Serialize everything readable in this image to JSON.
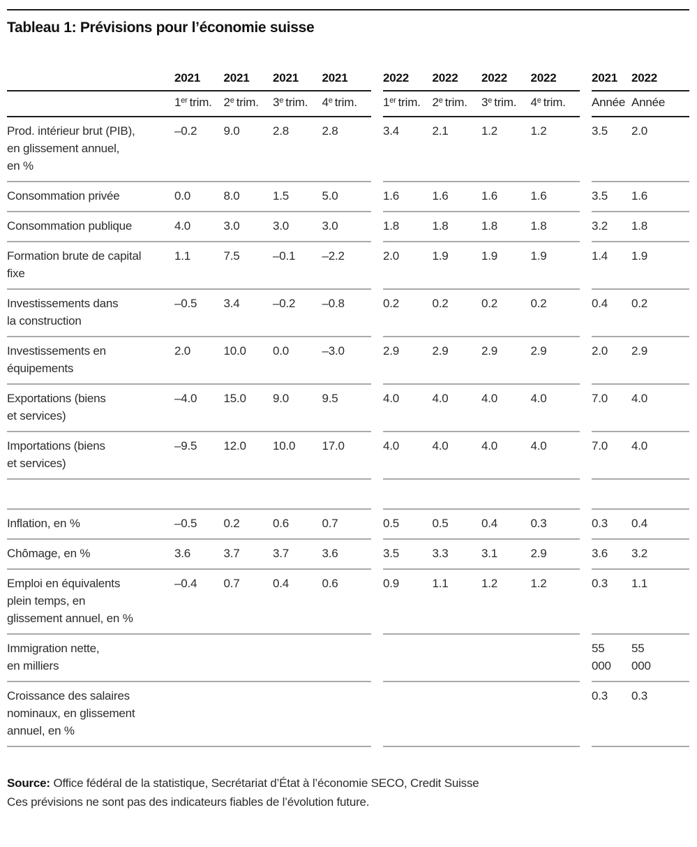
{
  "title": "Tableau 1: Prévisions pour l’économie suisse",
  "table": {
    "year_headers": {
      "g1": [
        "2021",
        "2021",
        "2021",
        "2021"
      ],
      "g2": [
        "2022",
        "2022",
        "2022",
        "2022"
      ],
      "g3": [
        "2021",
        "2022"
      ]
    },
    "quarter_headers": [
      {
        "n": "1",
        "s": "er",
        "t": "trim."
      },
      {
        "n": "2",
        "s": "e",
        "t": "trim."
      },
      {
        "n": "3",
        "s": "e",
        "t": "trim."
      },
      {
        "n": "4",
        "s": "e",
        "t": "trim."
      },
      {
        "n": "1",
        "s": "er",
        "t": "trim."
      },
      {
        "n": "2",
        "s": "e",
        "t": "trim."
      },
      {
        "n": "3",
        "s": "e",
        "t": "trim."
      },
      {
        "n": "4",
        "s": "e",
        "t": "trim."
      }
    ],
    "annual_headers": [
      "Année",
      "Année"
    ],
    "rows": [
      {
        "label": "Prod. intérieur brut (PIB),\nen glissement annuel,\nen %",
        "q2021": [
          "–0.2",
          "9.0",
          "2.8",
          "2.8"
        ],
        "q2022": [
          "3.4",
          "2.1",
          "1.2",
          "1.2"
        ],
        "annual": [
          "3.5",
          "2.0"
        ]
      },
      {
        "label": "Consommation privée",
        "q2021": [
          "0.0",
          "8.0",
          "1.5",
          "5.0"
        ],
        "q2022": [
          "1.6",
          "1.6",
          "1.6",
          "1.6"
        ],
        "annual": [
          "3.5",
          "1.6"
        ]
      },
      {
        "label": "Consommation publique",
        "q2021": [
          "4.0",
          "3.0",
          "3.0",
          "3.0"
        ],
        "q2022": [
          "1.8",
          "1.8",
          "1.8",
          "1.8"
        ],
        "annual": [
          "3.2",
          "1.8"
        ]
      },
      {
        "label": "Formation brute de capital\nfixe",
        "q2021": [
          "1.1",
          "7.5",
          "–0.1",
          "–2.2"
        ],
        "q2022": [
          "2.0",
          "1.9",
          "1.9",
          "1.9"
        ],
        "annual": [
          "1.4",
          "1.9"
        ]
      },
      {
        "label": "Investissements dans\nla construction",
        "q2021": [
          "–0.5",
          "3.4",
          "–0.2",
          "–0.8"
        ],
        "q2022": [
          "0.2",
          "0.2",
          "0.2",
          "0.2"
        ],
        "annual": [
          "0.4",
          "0.2"
        ]
      },
      {
        "label": "Investissements en\néquipements",
        "q2021": [
          "2.0",
          "10.0",
          "0.0",
          "–3.0"
        ],
        "q2022": [
          "2.9",
          "2.9",
          "2.9",
          "2.9"
        ],
        "annual": [
          "2.0",
          "2.9"
        ]
      },
      {
        "label": "Exportations (biens\net services)",
        "q2021": [
          "–4.0",
          "15.0",
          "9.0",
          "9.5"
        ],
        "q2022": [
          "4.0",
          "4.0",
          "4.0",
          "4.0"
        ],
        "annual": [
          "7.0",
          "4.0"
        ]
      },
      {
        "label": "Importations (biens\net services)",
        "q2021": [
          "–9.5",
          "12.0",
          "10.0",
          "17.0"
        ],
        "q2022": [
          "4.0",
          "4.0",
          "4.0",
          "4.0"
        ],
        "annual": [
          "7.0",
          "4.0"
        ]
      },
      {
        "spacer": true,
        "label": "",
        "q2021": [
          "",
          "",
          "",
          ""
        ],
        "q2022": [
          "",
          "",
          "",
          ""
        ],
        "annual": [
          "",
          ""
        ]
      },
      {
        "label": "Inflation, en %",
        "q2021": [
          "–0.5",
          "0.2",
          "0.6",
          "0.7"
        ],
        "q2022": [
          "0.5",
          "0.5",
          "0.4",
          "0.3"
        ],
        "annual": [
          "0.3",
          "0.4"
        ]
      },
      {
        "label": "Chômage, en %",
        "q2021": [
          "3.6",
          "3.7",
          "3.7",
          "3.6"
        ],
        "q2022": [
          "3.5",
          "3.3",
          "3.1",
          "2.9"
        ],
        "annual": [
          "3.6",
          "3.2"
        ]
      },
      {
        "label": "Emploi en équivalents\nplein temps, en\nglissement annuel, en %",
        "q2021": [
          "–0.4",
          "0.7",
          "0.4",
          "0.6"
        ],
        "q2022": [
          "0.9",
          "1.1",
          "1.2",
          "1.2"
        ],
        "annual": [
          "0.3",
          "1.1"
        ]
      },
      {
        "label": "Immigration nette,\nen milliers",
        "q2021": [
          "",
          "",
          "",
          ""
        ],
        "q2022": [
          "",
          "",
          "",
          ""
        ],
        "annual": [
          "55\n000",
          "55\n000"
        ]
      },
      {
        "label": "Croissance des salaires\nnominaux, en glissement\nannuel, en %",
        "q2021": [
          "",
          "",
          "",
          ""
        ],
        "q2022": [
          "",
          "",
          "",
          ""
        ],
        "annual": [
          "0.3",
          "0.3"
        ]
      }
    ]
  },
  "source": {
    "label": "Source:",
    "text": "Office fédéral de la statistique, Secrétariat d’État à l’économie SECO, Credit Suisse",
    "disclaimer": "Ces prévisions ne sont pas des indicateurs fiables de l’évolution future."
  }
}
